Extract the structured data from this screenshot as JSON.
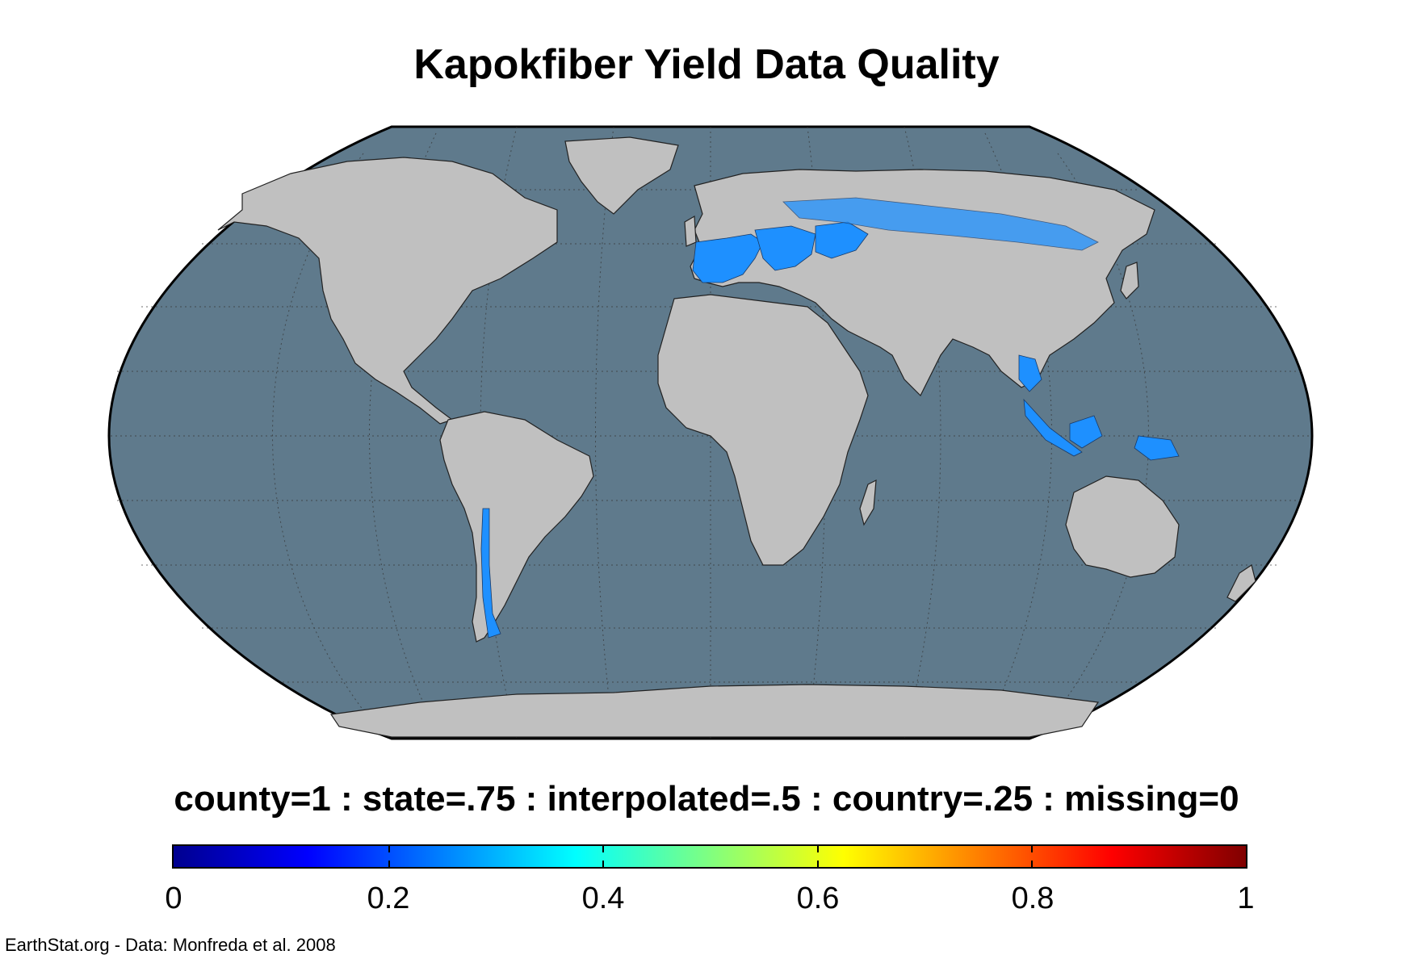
{
  "title": "Kapokfiber Yield Data Quality",
  "legend": {
    "description": "county=1 : state=.75 : interpolated=.5 : country=.25 : missing=0",
    "ticks": [
      "0",
      "0.2",
      "0.4",
      "0.6",
      "0.8",
      "1"
    ],
    "range": [
      0,
      1
    ],
    "colormap": "jet"
  },
  "credit": "EarthStat.org - Data: Monfreda et al. 2008",
  "colors": {
    "ocean": "#5f7a8c",
    "land": "#c0c0c0",
    "data_value_025": "#1e90ff",
    "border": "#000000"
  },
  "projection": "Robinson",
  "data_regions": [
    "Spain",
    "France",
    "Italy",
    "Germany",
    "Poland",
    "Hungary",
    "Romania",
    "Bulgaria",
    "Ukraine",
    "Russia",
    "Thailand",
    "Malaysia",
    "Indonesia",
    "Papua New Guinea",
    "Chile"
  ]
}
